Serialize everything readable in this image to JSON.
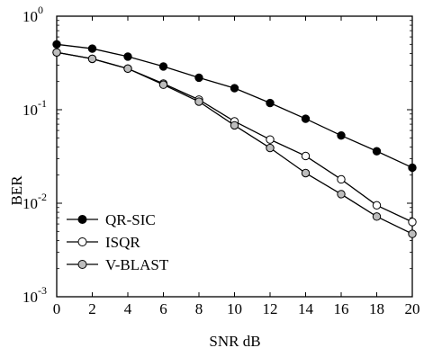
{
  "chart_data": {
    "type": "line",
    "title": "",
    "xlabel": "SNR dB",
    "ylabel": "BER",
    "xlim": [
      0,
      20
    ],
    "ylim": [
      0.001,
      1
    ],
    "yscale": "log",
    "grid": false,
    "legend_position": "bottom-left",
    "x_ticks": [
      "0",
      "2",
      "4",
      "6",
      "8",
      "10",
      "12",
      "14",
      "16",
      "18",
      "20"
    ],
    "y_ticks": [
      {
        "base": "10",
        "exp": "0"
      },
      {
        "base": "10",
        "exp": "-1"
      },
      {
        "base": "10",
        "exp": "-2"
      },
      {
        "base": "10",
        "exp": "-3"
      }
    ],
    "x": [
      0,
      2,
      4,
      6,
      8,
      10,
      12,
      14,
      16,
      18,
      20
    ],
    "series": [
      {
        "name": "QR-SIC",
        "marker": "filled-circle",
        "color": "#000000",
        "fill": "#000000",
        "values": [
          0.5,
          0.45,
          0.37,
          0.29,
          0.22,
          0.17,
          0.118,
          0.08,
          0.053,
          0.036,
          0.024
        ]
      },
      {
        "name": "ISQR",
        "marker": "open-circle",
        "color": "#000000",
        "fill": "#ffffff",
        "values": [
          0.41,
          0.35,
          0.275,
          0.19,
          0.128,
          0.075,
          0.048,
          0.032,
          0.018,
          0.0095,
          0.0063
        ]
      },
      {
        "name": "V-BLAST",
        "marker": "gray-circle",
        "color": "#000000",
        "fill": "#bdbdbd",
        "values": [
          0.41,
          0.35,
          0.275,
          0.185,
          0.122,
          0.068,
          0.039,
          0.021,
          0.0125,
          0.0072,
          0.0047
        ]
      }
    ]
  }
}
